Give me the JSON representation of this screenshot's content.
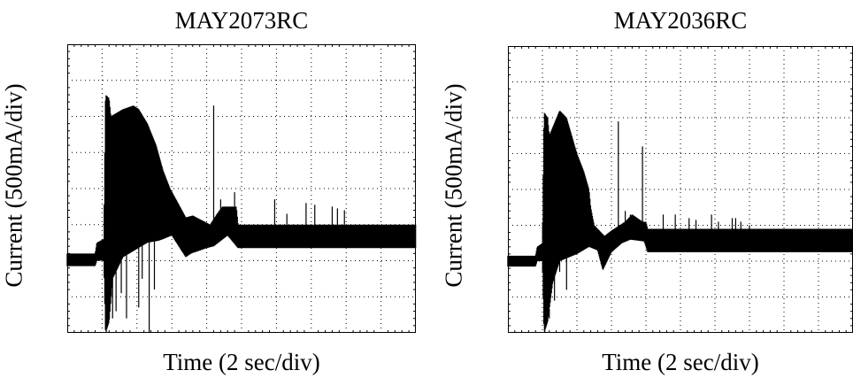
{
  "chart_data": [
    {
      "type": "line",
      "title": "MAY2073RC",
      "xlabel": "Time (2 sec/div)",
      "ylabel": "Current (500mA/div)",
      "x_divisions": 10,
      "y_divisions": 8,
      "xlim": [
        0,
        10
      ],
      "ylim": [
        0,
        8
      ],
      "grid": true,
      "series": [
        {
          "envelope_upper": [
            [
              0,
              2.2
            ],
            [
              0.8,
              2.2
            ],
            [
              0.85,
              2.5
            ],
            [
              1.05,
              2.6
            ],
            [
              1.1,
              6.6
            ],
            [
              1.2,
              6.5
            ],
            [
              1.25,
              6.0
            ],
            [
              1.6,
              6.2
            ],
            [
              1.9,
              6.3
            ],
            [
              2.05,
              6.2
            ],
            [
              2.3,
              5.8
            ],
            [
              2.55,
              5.2
            ],
            [
              2.75,
              4.5
            ],
            [
              2.95,
              4.0
            ],
            [
              3.4,
              3.2
            ],
            [
              3.6,
              3.25
            ],
            [
              4.1,
              3.0
            ],
            [
              4.3,
              3.3
            ],
            [
              4.45,
              3.5
            ],
            [
              4.85,
              3.5
            ],
            [
              4.9,
              3.0
            ],
            [
              10,
              3.0
            ]
          ],
          "envelope_lower": [
            [
              0,
              1.85
            ],
            [
              0.8,
              1.85
            ],
            [
              0.85,
              2.0
            ],
            [
              1.05,
              2.0
            ],
            [
              1.1,
              0
            ],
            [
              1.2,
              0.3
            ],
            [
              1.3,
              1.5
            ],
            [
              1.6,
              2.1
            ],
            [
              2.3,
              2.5
            ],
            [
              2.6,
              2.55
            ],
            [
              2.75,
              2.6
            ],
            [
              3.0,
              2.7
            ],
            [
              3.4,
              2.1
            ],
            [
              3.55,
              2.2
            ],
            [
              4.0,
              2.35
            ],
            [
              4.2,
              2.4
            ],
            [
              4.6,
              2.7
            ],
            [
              4.9,
              2.35
            ],
            [
              10,
              2.35
            ]
          ],
          "deep_spikes": [
            [
              1.12,
              0.0
            ],
            [
              1.3,
              0.4
            ],
            [
              1.4,
              0.6
            ],
            [
              1.55,
              1.1
            ],
            [
              1.7,
              0.4
            ],
            [
              2.05,
              0.7
            ],
            [
              2.15,
              1.5
            ],
            [
              2.35,
              0.0
            ],
            [
              2.5,
              1.2
            ]
          ],
          "high_spikes": [
            [
              4.2,
              6.3
            ],
            [
              4.4,
              3.7
            ],
            [
              4.8,
              3.9
            ],
            [
              5.95,
              3.7
            ],
            [
              6.3,
              3.3
            ],
            [
              6.85,
              3.6
            ],
            [
              7.1,
              3.55
            ],
            [
              7.6,
              3.5
            ],
            [
              7.75,
              3.45
            ],
            [
              7.95,
              3.4
            ]
          ]
        }
      ]
    },
    {
      "type": "line",
      "title": "MAY2036RC",
      "xlabel": "Time (2 sec/div)",
      "ylabel": "Current (500mA/div)",
      "x_divisions": 10,
      "y_divisions": 8,
      "xlim": [
        0,
        10
      ],
      "ylim": [
        0,
        8
      ],
      "grid": true,
      "series": [
        {
          "envelope_upper": [
            [
              0,
              2.15
            ],
            [
              0.8,
              2.15
            ],
            [
              0.85,
              2.4
            ],
            [
              1.0,
              2.5
            ],
            [
              1.05,
              6.15
            ],
            [
              1.15,
              6.0
            ],
            [
              1.2,
              5.5
            ],
            [
              1.5,
              6.2
            ],
            [
              1.7,
              6.0
            ],
            [
              2.0,
              5.0
            ],
            [
              2.2,
              4.5
            ],
            [
              2.35,
              4.0
            ],
            [
              2.4,
              3.5
            ],
            [
              2.5,
              3.0
            ],
            [
              2.8,
              2.7
            ],
            [
              3.0,
              2.85
            ],
            [
              3.4,
              3.1
            ],
            [
              3.6,
              3.3
            ],
            [
              3.9,
              3.1
            ],
            [
              4.0,
              3.1
            ],
            [
              4.05,
              2.9
            ],
            [
              10,
              2.9
            ]
          ],
          "envelope_lower": [
            [
              0,
              1.85
            ],
            [
              0.8,
              1.85
            ],
            [
              0.85,
              2.0
            ],
            [
              1.0,
              2.0
            ],
            [
              1.05,
              0
            ],
            [
              1.15,
              0.3
            ],
            [
              1.3,
              1.4
            ],
            [
              1.5,
              2.0
            ],
            [
              2.0,
              2.2
            ],
            [
              2.35,
              2.4
            ],
            [
              2.6,
              2.3
            ],
            [
              2.75,
              1.75
            ],
            [
              3.0,
              2.25
            ],
            [
              3.3,
              2.5
            ],
            [
              3.55,
              2.6
            ],
            [
              3.95,
              2.55
            ],
            [
              4.05,
              2.25
            ],
            [
              10,
              2.25
            ]
          ],
          "deep_spikes": [
            [
              1.07,
              0.0
            ],
            [
              1.2,
              0.4
            ],
            [
              1.35,
              0.9
            ],
            [
              1.5,
              1.7
            ],
            [
              1.7,
              1.2
            ]
          ],
          "high_spikes": [
            [
              3.2,
              5.9
            ],
            [
              3.4,
              3.4
            ],
            [
              3.55,
              3.3
            ],
            [
              3.9,
              5.2
            ],
            [
              4.5,
              3.3
            ],
            [
              4.85,
              3.3
            ],
            [
              5.25,
              3.2
            ],
            [
              5.45,
              3.15
            ],
            [
              5.9,
              3.3
            ],
            [
              6.1,
              3.1
            ],
            [
              6.5,
              3.2
            ],
            [
              6.6,
              3.2
            ],
            [
              6.75,
              3.1
            ],
            [
              7.0,
              3.0
            ]
          ]
        }
      ]
    }
  ]
}
